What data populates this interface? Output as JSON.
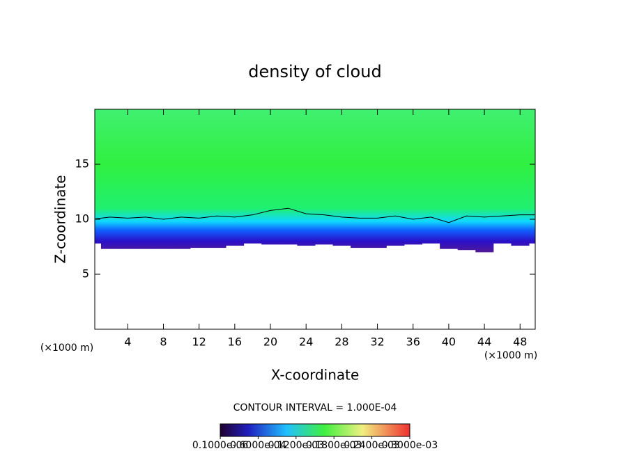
{
  "chart_data": {
    "type": "contour",
    "title": "density of cloud",
    "xlabel": "X-coordinate",
    "ylabel": "Z-coordinate",
    "xunit": "(×1000 m)",
    "yunit": "(×1000 m)",
    "xlim": [
      0.3,
      49.7
    ],
    "ylim": [
      0,
      20
    ],
    "xticks": [
      4,
      8,
      12,
      16,
      20,
      24,
      28,
      32,
      36,
      40,
      44,
      48
    ],
    "yticks": [
      5,
      10,
      15
    ],
    "x": [
      0,
      2,
      4,
      6,
      8,
      10,
      12,
      14,
      16,
      18,
      20,
      22,
      24,
      26,
      28,
      30,
      32,
      34,
      36,
      38,
      40,
      42,
      44,
      46,
      48,
      50
    ],
    "cloud_base": [
      7.8,
      7.3,
      7.3,
      7.3,
      7.3,
      7.3,
      7.4,
      7.4,
      7.6,
      7.8,
      7.7,
      7.7,
      7.6,
      7.7,
      7.6,
      7.4,
      7.4,
      7.6,
      7.7,
      7.8,
      7.3,
      7.2,
      7.0,
      7.8,
      7.6,
      7.8
    ],
    "contour": [
      10.0,
      10.2,
      10.1,
      10.2,
      10.0,
      10.2,
      10.1,
      10.3,
      10.2,
      10.4,
      10.8,
      11.0,
      10.5,
      10.4,
      10.2,
      10.1,
      10.1,
      10.3,
      10.0,
      10.2,
      9.7,
      10.3,
      10.2,
      10.3,
      10.4,
      10.4
    ],
    "contour_interval": "CONTOUR INTERVAL = 1.000E-04",
    "colorbar_lim": [
      0,
      0.0003
    ],
    "colorbar_ticks": [
      {
        "value": 1e-07,
        "label": "0.1000e-06"
      },
      {
        "value": 6e-05,
        "label": "0.6000e-04"
      },
      {
        "value": 0.00012,
        "label": "0.1200e-03"
      },
      {
        "value": 0.00018,
        "label": "0.1800e-03"
      },
      {
        "value": 0.00024,
        "label": "0.2400e-03"
      },
      {
        "value": 0.0003,
        "label": "0.3000e-03"
      }
    ]
  }
}
